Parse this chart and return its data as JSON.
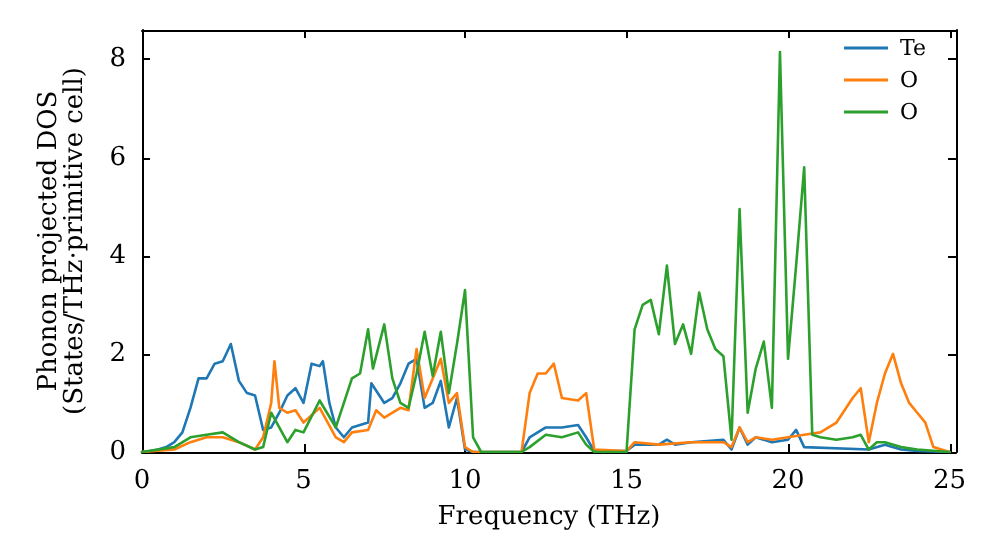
{
  "chart_data": {
    "type": "line",
    "xlabel": "Frequency (THz)",
    "ylabel": "Phonon projected DOS\n(States/THz·primitive cell)",
    "xlim": [
      0,
      25.2
    ],
    "xticks": [
      0,
      5,
      10,
      15,
      20,
      25
    ],
    "ylim": [
      0,
      8.6
    ],
    "yticks": [
      0,
      2,
      4,
      6,
      8
    ],
    "grid": false,
    "legend": "top right",
    "marker": "none",
    "line_style": "solid",
    "series": [
      {
        "name": "Te",
        "color": "#1f77b4",
        "x": [
          0,
          0.25,
          0.5,
          0.75,
          1,
          1.25,
          1.5,
          1.75,
          2,
          2.25,
          2.5,
          2.75,
          3,
          3.25,
          3.5,
          3.75,
          4,
          4.25,
          4.5,
          4.75,
          5,
          5.25,
          5.5,
          5.6,
          5.8,
          6,
          6.25,
          6.5,
          6.75,
          7,
          7.1,
          7.5,
          7.75,
          8,
          8.25,
          8.5,
          8.75,
          9,
          9.25,
          9.5,
          9.75,
          10,
          10.25,
          11.75,
          12,
          12.5,
          13,
          13.5,
          13.75,
          14,
          15,
          15.25,
          16,
          16.25,
          16.5,
          17,
          18,
          18.25,
          18.5,
          18.75,
          19,
          19.5,
          20,
          20.25,
          20.5,
          22.5,
          23,
          23.5,
          24,
          25
        ],
        "values": [
          0,
          0.02,
          0.05,
          0.1,
          0.2,
          0.4,
          0.9,
          1.5,
          1.5,
          1.8,
          1.85,
          2.2,
          1.45,
          1.2,
          1.15,
          0.45,
          0.5,
          0.8,
          1.15,
          1.3,
          1.0,
          1.8,
          1.75,
          1.85,
          1.0,
          0.5,
          0.3,
          0.5,
          0.55,
          0.6,
          1.4,
          1.0,
          1.1,
          1.4,
          1.8,
          1.9,
          0.9,
          1.0,
          1.45,
          0.5,
          1.1,
          0.05,
          0,
          0,
          0.3,
          0.5,
          0.5,
          0.55,
          0.3,
          0.02,
          0.02,
          0.15,
          0.15,
          0.25,
          0.15,
          0.2,
          0.25,
          0.05,
          0.5,
          0.15,
          0.3,
          0.2,
          0.25,
          0.45,
          0.1,
          0.05,
          0.15,
          0.05,
          0.02,
          0
        ]
      },
      {
        "name": "O",
        "color": "#ff7f0e",
        "x": [
          0,
          1,
          1.5,
          2,
          2.5,
          3,
          3.5,
          3.75,
          4,
          4.1,
          4.25,
          4.5,
          4.75,
          5,
          5.5,
          6,
          6.25,
          6.5,
          7,
          7.25,
          7.5,
          8,
          8.25,
          8.5,
          8.75,
          9,
          9.25,
          9.5,
          9.75,
          10,
          10.25,
          11.75,
          12,
          12.25,
          12.5,
          12.75,
          13,
          13.5,
          13.75,
          14,
          15,
          15.25,
          16,
          17,
          18,
          18.25,
          18.5,
          18.75,
          19,
          19.5,
          20,
          20.5,
          21,
          21.5,
          22,
          22.25,
          22.5,
          22.75,
          23,
          23.25,
          23.5,
          23.75,
          24,
          24.25,
          24.5,
          25
        ],
        "values": [
          0,
          0.05,
          0.2,
          0.3,
          0.3,
          0.2,
          0.05,
          0.3,
          1.0,
          1.85,
          0.9,
          0.8,
          0.85,
          0.6,
          0.9,
          0.3,
          0.2,
          0.4,
          0.45,
          0.85,
          0.7,
          0.9,
          0.85,
          2.1,
          1.1,
          1.5,
          1.9,
          1.0,
          1.2,
          0.1,
          0,
          0,
          1.2,
          1.6,
          1.6,
          1.8,
          1.1,
          1.05,
          1.2,
          0.05,
          0.02,
          0.2,
          0.15,
          0.2,
          0.2,
          0.1,
          0.5,
          0.2,
          0.3,
          0.25,
          0.3,
          0.35,
          0.4,
          0.6,
          1.1,
          1.3,
          0.2,
          1.0,
          1.6,
          2.0,
          1.4,
          1.0,
          0.8,
          0.6,
          0.1,
          0
        ]
      },
      {
        "name": "O",
        "color": "#2ca02c",
        "x": [
          0,
          1,
          1.5,
          2,
          2.5,
          3,
          3.5,
          3.75,
          4,
          4.25,
          4.5,
          4.75,
          5,
          5.5,
          6,
          6.25,
          6.5,
          6.75,
          7,
          7.15,
          7.5,
          7.75,
          8,
          8.25,
          8.5,
          8.75,
          9,
          9.25,
          9.5,
          9.75,
          10,
          10.25,
          10.5,
          11.75,
          12,
          12.5,
          13,
          13.5,
          13.75,
          14,
          15,
          15.25,
          15.5,
          15.75,
          16,
          16.25,
          16.5,
          16.75,
          17,
          17.25,
          17.5,
          17.75,
          18,
          18.25,
          18.5,
          18.75,
          19,
          19.25,
          19.5,
          19.75,
          20,
          20.25,
          20.5,
          20.75,
          21,
          21.5,
          22,
          22.25,
          22.5,
          22.75,
          23,
          23.5,
          24,
          25
        ],
        "values": [
          0,
          0.1,
          0.3,
          0.35,
          0.4,
          0.2,
          0.05,
          0.1,
          0.8,
          0.5,
          0.2,
          0.45,
          0.4,
          1.05,
          0.5,
          1.0,
          1.5,
          1.6,
          2.5,
          1.7,
          2.6,
          1.5,
          1.0,
          0.9,
          1.6,
          2.45,
          1.55,
          2.45,
          1.2,
          2.2,
          3.3,
          0.3,
          0,
          0,
          0.1,
          0.35,
          0.3,
          0.4,
          0.15,
          0,
          0,
          2.5,
          3.0,
          3.1,
          2.4,
          3.8,
          2.2,
          2.6,
          2.0,
          3.25,
          2.5,
          2.1,
          1.95,
          0.25,
          4.95,
          0.8,
          1.7,
          2.25,
          0.9,
          8.15,
          1.9,
          3.8,
          5.8,
          0.35,
          0.3,
          0.25,
          0.3,
          0.35,
          0.05,
          0.2,
          0.2,
          0.1,
          0.05,
          0
        ]
      }
    ]
  }
}
